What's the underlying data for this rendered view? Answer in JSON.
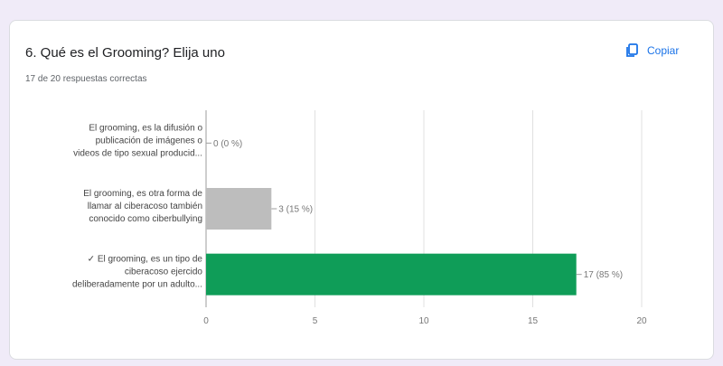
{
  "question": {
    "title": "6. Qué es el Grooming? Elija uno",
    "summary": "17 de 20 respuestas correctas",
    "copy_label": "Copiar"
  },
  "chart_data": {
    "type": "bar",
    "orientation": "horizontal",
    "categories": [
      [
        "El grooming, es la difusión o",
        "publicación de imágenes o",
        "videos de tipo sexual producid..."
      ],
      [
        "El grooming, es otra forma de",
        "llamar al ciberacoso también",
        "conocido como ciberbullying"
      ],
      [
        "✓ El grooming, es un tipo de",
        "ciberacoso ejercido",
        "deliberadamente por un adulto..."
      ]
    ],
    "values": [
      0,
      3,
      17
    ],
    "value_labels": [
      "0 (0 %)",
      "3 (15 %)",
      "17 (85 %)"
    ],
    "xlim": [
      0,
      20
    ],
    "xticks": [
      0,
      5,
      10,
      15,
      20
    ],
    "grid": true,
    "colors": [
      "#bdbdbd",
      "#bdbdbd",
      "#0f9d58"
    ]
  }
}
